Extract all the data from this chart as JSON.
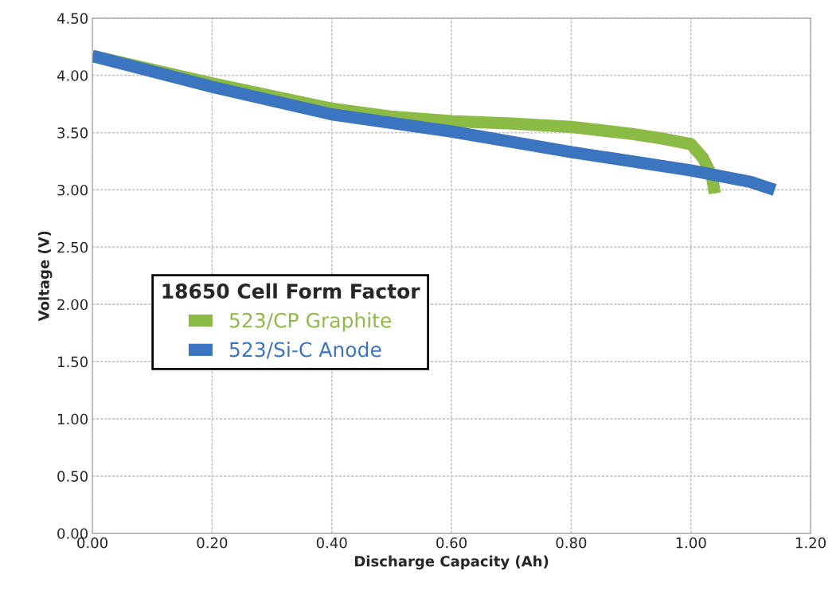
{
  "chart_data": {
    "type": "line",
    "xlabel": "Discharge Capacity (Ah)",
    "ylabel": "Voltage (V)",
    "legend_title": "18650 Cell Form Factor",
    "legend": "left",
    "grid": true,
    "marker": "none",
    "line_style": "solid",
    "xlim": [
      0,
      1.2
    ],
    "ylim": [
      0,
      4.5
    ],
    "xticks": [
      {
        "value": 0,
        "label": "0.00"
      },
      {
        "value": 0.2,
        "label": "0.20"
      },
      {
        "value": 0.4,
        "label": "0.40"
      },
      {
        "value": 0.6,
        "label": "0.60"
      },
      {
        "value": 0.8,
        "label": "0.80"
      },
      {
        "value": 1.0,
        "label": "1.00"
      },
      {
        "value": 1.2,
        "label": "1.20"
      }
    ],
    "yticks": [
      {
        "value": 0,
        "label": "0.00"
      },
      {
        "value": 0.5,
        "label": "0.50"
      },
      {
        "value": 1.0,
        "label": "1.00"
      },
      {
        "value": 1.5,
        "label": "1.50"
      },
      {
        "value": 2.0,
        "label": "2.00"
      },
      {
        "value": 2.5,
        "label": "2.50"
      },
      {
        "value": 3.0,
        "label": "3.00"
      },
      {
        "value": 3.5,
        "label": "3.50"
      },
      {
        "value": 4.0,
        "label": "4.00"
      },
      {
        "value": 4.5,
        "label": "4.50"
      }
    ],
    "series": [
      {
        "name": "523/CP Graphite",
        "color": "#8cbb45",
        "x": [
          0,
          0.2,
          0.4,
          0.5,
          0.6,
          0.7,
          0.8,
          0.9,
          0.95,
          1.0,
          1.02,
          1.035,
          1.04
        ],
        "values": [
          4.17,
          3.93,
          3.71,
          3.64,
          3.6,
          3.58,
          3.55,
          3.49,
          3.45,
          3.4,
          3.28,
          3.12,
          2.97
        ]
      },
      {
        "name": "523/Si-C Anode",
        "color": "#3b75c0",
        "x": [
          0,
          0.2,
          0.4,
          0.6,
          0.8,
          1.0,
          1.1,
          1.14
        ],
        "values": [
          4.17,
          3.9,
          3.66,
          3.51,
          3.33,
          3.17,
          3.07,
          3.0
        ]
      }
    ]
  }
}
